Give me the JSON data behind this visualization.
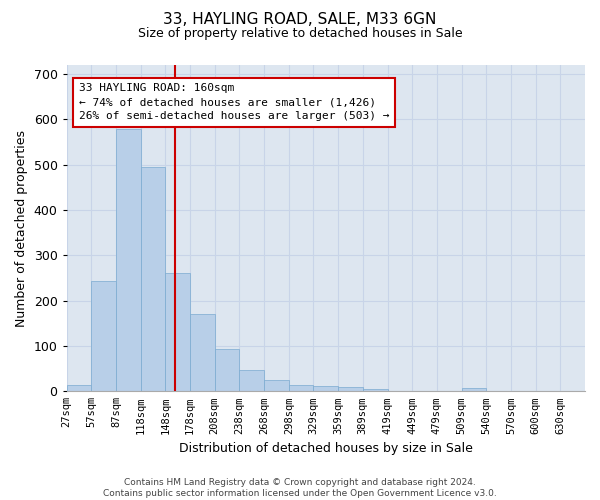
{
  "title_line1": "33, HAYLING ROAD, SALE, M33 6GN",
  "title_line2": "Size of property relative to detached houses in Sale",
  "xlabel": "Distribution of detached houses by size in Sale",
  "ylabel": "Number of detached properties",
  "categories": [
    "27sqm",
    "57sqm",
    "87sqm",
    "118sqm",
    "148sqm",
    "178sqm",
    "208sqm",
    "238sqm",
    "268sqm",
    "298sqm",
    "329sqm",
    "359sqm",
    "389sqm",
    "419sqm",
    "449sqm",
    "479sqm",
    "509sqm",
    "540sqm",
    "570sqm",
    "600sqm",
    "630sqm"
  ],
  "values": [
    13,
    243,
    578,
    495,
    260,
    170,
    93,
    48,
    25,
    13,
    12,
    10,
    6,
    0,
    0,
    0,
    7,
    0,
    0,
    0,
    0
  ],
  "bar_color": "#b8cfe8",
  "bar_edge_color": "#7aaad0",
  "grid_color": "#c8d4e8",
  "background_color": "#dde6f0",
  "vline_color": "#cc0000",
  "annotation_text": "33 HAYLING ROAD: 160sqm\n← 74% of detached houses are smaller (1,426)\n26% of semi-detached houses are larger (503) →",
  "annotation_box_color": "#cc0000",
  "ylim": [
    0,
    720
  ],
  "yticks": [
    0,
    100,
    200,
    300,
    400,
    500,
    600,
    700
  ],
  "footer": "Contains HM Land Registry data © Crown copyright and database right 2024.\nContains public sector information licensed under the Open Government Licence v3.0."
}
